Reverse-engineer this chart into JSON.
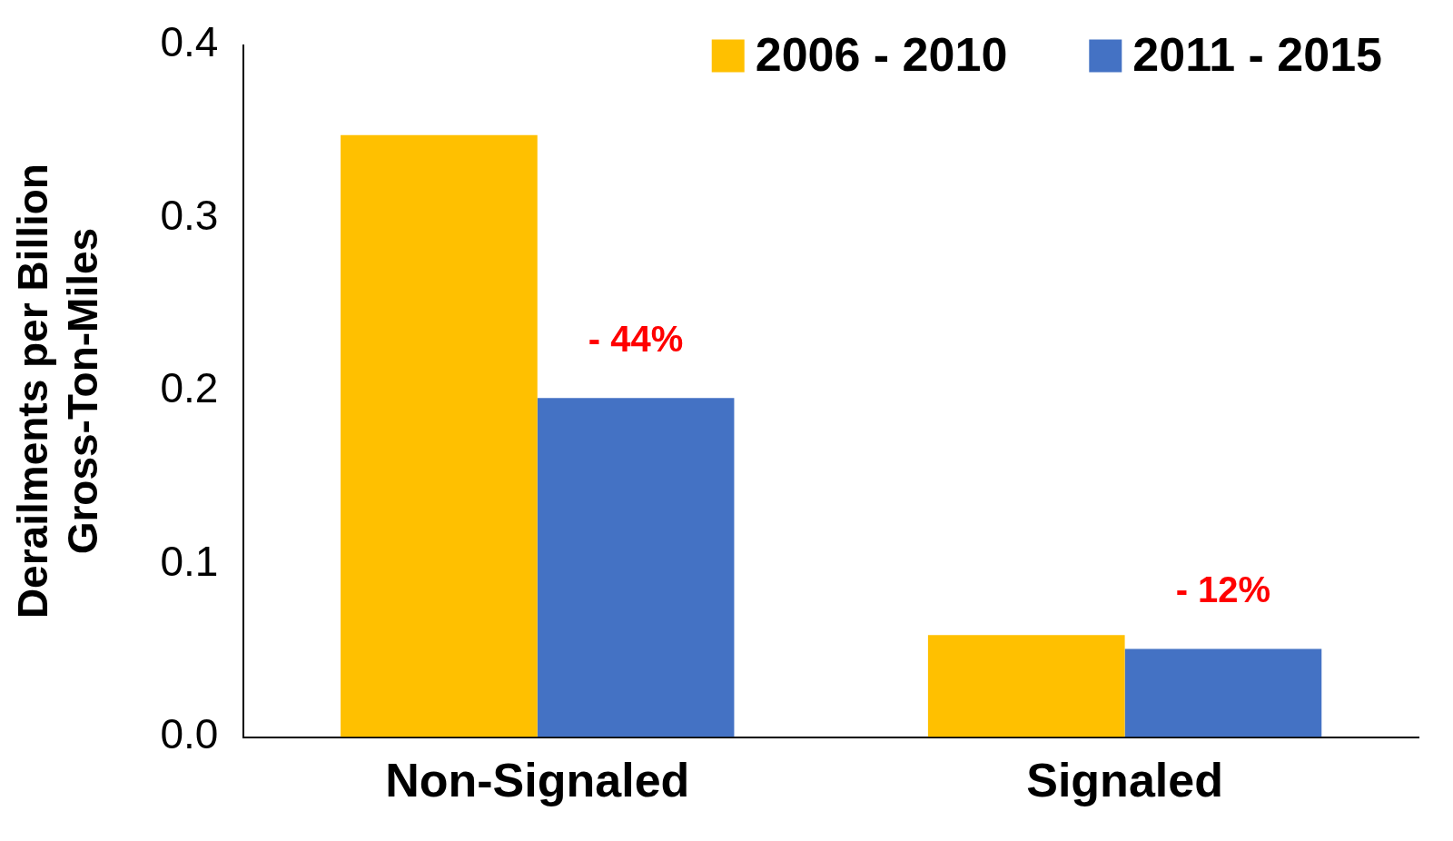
{
  "chart_data": {
    "type": "bar",
    "ylabel": "Derailments per Billion\nGross-Ton-Miles",
    "categories": [
      "Non-Signaled",
      "Signaled"
    ],
    "series": [
      {
        "name": "2006 - 2010",
        "color": "#ffc000",
        "values": [
          0.348,
          0.059
        ]
      },
      {
        "name": "2011 - 2015",
        "color": "#4472c4",
        "values": [
          0.196,
          0.051
        ]
      }
    ],
    "ylim": [
      0,
      0.4
    ],
    "yticks": [
      {
        "value": 0,
        "label": "0.0"
      },
      0.1,
      0.2,
      0.3,
      0.4
    ],
    "grid": false,
    "legend": "top right",
    "annotations": [
      {
        "text": "- 44%",
        "x": "Non-Signaled",
        "y": 0.196
      },
      {
        "text": "- 12%",
        "x": "Signaled",
        "y": 0.051
      }
    ]
  }
}
